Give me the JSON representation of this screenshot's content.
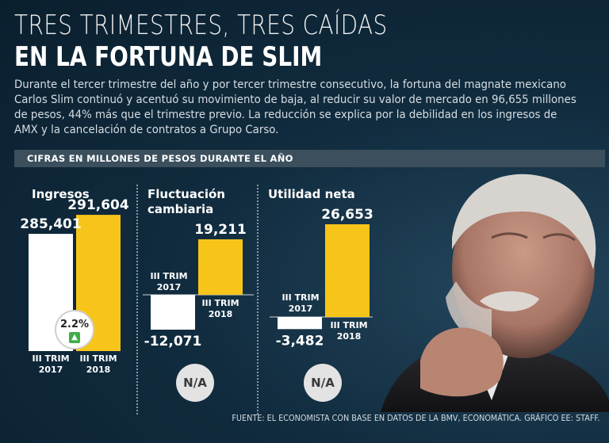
{
  "title_line1": "TRES TRIMESTRES, TRES CAÍDAS",
  "title_line2": "EN LA FORTUNA DE SLIM",
  "intro": "Durante el tercer trimestre del año y por tercer trimestre consecutivo, la fortuna del magnate mexicano Carlos Slim continuó y acentuó su movimiento de baja, al reducir su valor de mercado en 96,655 millones de pesos, 44% más que el trimestre  previo. La reducción se explica por la debilidad en los ingresos de AMX y la cancelación de contratos a Grupo Carso.",
  "subheader": "CIFRAS EN MILLONES DE PESOS DURANTE EL AÑO",
  "source": "FUENTE:  EL ECONOMISTA CON BASE EN DATOS DE LA BMV, ECONOMÁTICA.  GRÁFICO EE: STAFF.",
  "colors": {
    "bar_2017": "#ffffff",
    "bar_2018": "#f7c51a",
    "growth_arrow": "#3fae49"
  },
  "chart_data": [
    {
      "type": "bar",
      "title": "Ingresos",
      "categories": [
        "III TRIM 2017",
        "III TRIM 2018"
      ],
      "values": [
        285401,
        291604
      ],
      "value_labels": [
        "285,401",
        "291,604"
      ],
      "annotation": "2.2%",
      "annotation_icon": "up-arrow-icon"
    },
    {
      "type": "bar",
      "title": "Fluctuación cambiaria",
      "categories": [
        "III TRIM 2017",
        "III TRIM 2018"
      ],
      "values": [
        -12071,
        19211
      ],
      "value_labels": [
        "-12,071",
        "19,211"
      ],
      "annotation": "N/A"
    },
    {
      "type": "bar",
      "title": "Utilidad neta",
      "categories": [
        "III TRIM 2017",
        "III TRIM 2018"
      ],
      "values": [
        -3482,
        26653
      ],
      "value_labels": [
        "-3,482",
        "26,653"
      ],
      "annotation": "N/A"
    }
  ]
}
